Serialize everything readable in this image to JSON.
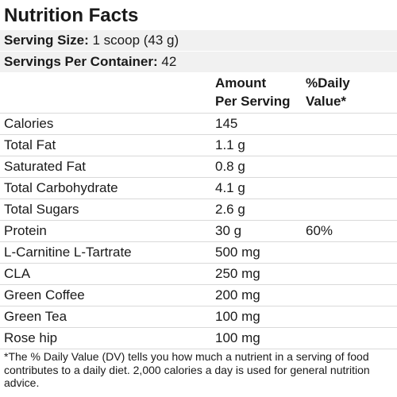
{
  "title": "Nutrition Facts",
  "serving_size": {
    "label": "Serving Size:",
    "value": "1 scoop (43 g)"
  },
  "servings_per_container": {
    "label": "Servings Per Container:",
    "value": "42"
  },
  "header": {
    "amount_line1": "Amount",
    "amount_line2": "Per Serving",
    "dv_line1": "%Daily",
    "dv_line2": "Value*"
  },
  "nutrients": [
    {
      "name": "Calories",
      "amount": "145",
      "dv": ""
    },
    {
      "name": "Total Fat",
      "amount": "1.1 g",
      "dv": ""
    },
    {
      "name": "Saturated Fat",
      "amount": "0.8 g",
      "dv": ""
    },
    {
      "name": "Total Carbohydrate",
      "amount": "4.1 g",
      "dv": ""
    },
    {
      "name": "Total Sugars",
      "amount": "2.6 g",
      "dv": ""
    },
    {
      "name": "Protein",
      "amount": "30 g",
      "dv": "60%"
    },
    {
      "name": "L-Carnitine L-Tartrate",
      "amount": "500 mg",
      "dv": ""
    },
    {
      "name": "CLA",
      "amount": "250 mg",
      "dv": ""
    },
    {
      "name": "Green Coffee",
      "amount": "200 mg",
      "dv": ""
    },
    {
      "name": "Green Tea",
      "amount": "100 mg",
      "dv": ""
    },
    {
      "name": "Rose hip",
      "amount": "100 mg",
      "dv": ""
    }
  ],
  "footnote": "*The % Daily Value (DV) tells you how much a nutrient in a serving of food contributes to a daily diet. 2,000 calories a day is used for general nutrition advice."
}
